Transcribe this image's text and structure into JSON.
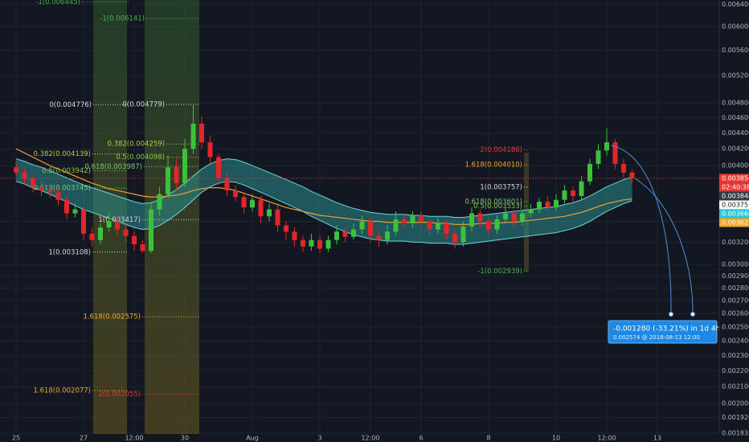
{
  "chart_data": {
    "type": "candlestick",
    "log": true,
    "grid": true,
    "ylim": [
      0.00183,
      0.00648
    ],
    "yticks": [
      {
        "value": 0.0064,
        "label": "0.006400"
      },
      {
        "value": 0.006,
        "label": "0.006000"
      },
      {
        "value": 0.0056,
        "label": "0.005600"
      },
      {
        "value": 0.0052,
        "label": "0.005200"
      },
      {
        "value": 0.0048,
        "label": "0.004800"
      },
      {
        "value": 0.0046,
        "label": "0.004600"
      },
      {
        "value": 0.0044,
        "label": "0.004400"
      },
      {
        "value": 0.0042,
        "label": "0.004200"
      },
      {
        "value": 0.004,
        "label": "0.004000"
      },
      {
        "value": 0.0034,
        "label": "0.003400"
      },
      {
        "value": 0.0032,
        "label": "0.003200"
      },
      {
        "value": 0.003,
        "label": "0.003000"
      },
      {
        "value": 0.0029,
        "label": "0.002900"
      },
      {
        "value": 0.0028,
        "label": "0.002800"
      },
      {
        "value": 0.0027,
        "label": "0.002700"
      },
      {
        "value": 0.0026,
        "label": "0.002600"
      },
      {
        "value": 0.0025,
        "label": "0.002500"
      },
      {
        "value": 0.0024,
        "label": "0.002400"
      },
      {
        "value": 0.0023,
        "label": "0.002300"
      },
      {
        "value": 0.0022,
        "label": "0.002200"
      },
      {
        "value": 0.0021,
        "label": "0.002100"
      },
      {
        "value": 0.002,
        "label": "0.002000"
      },
      {
        "value": 0.00192,
        "label": "0.001920"
      },
      {
        "value": 0.001835,
        "label": "0.001835"
      }
    ],
    "categories": [
      "25",
      null,
      null,
      null,
      null,
      null,
      null,
      null,
      "27",
      null,
      null,
      null,
      null,
      null,
      "12:00",
      null,
      null,
      null,
      null,
      null,
      "30",
      null,
      null,
      null,
      null,
      null,
      null,
      null,
      "Aug",
      null,
      null,
      null,
      null,
      null,
      null,
      null,
      "3",
      null,
      null,
      null,
      null,
      null,
      "12:00",
      null,
      null,
      null,
      null,
      null,
      "6",
      null,
      null,
      null,
      null,
      null,
      null,
      null,
      "8",
      null,
      null,
      null,
      null,
      null,
      null,
      null,
      "10",
      null,
      null,
      null,
      null,
      null,
      "12:00",
      null,
      null,
      null,
      null,
      null,
      "13",
      null
    ],
    "up_color": "#3cc13c",
    "down_color": "#e3262a",
    "open": [
      0.00398,
      0.00392,
      0.00385,
      0.00376,
      0.00372,
      0.0037,
      0.00362,
      0.00348,
      0.00352,
      0.00328,
      0.00322,
      0.00334,
      0.0034,
      0.00332,
      0.00326,
      0.00318,
      0.00312,
      0.00352,
      0.00368,
      0.00398,
      0.0038,
      0.0042,
      0.00452,
      0.00428,
      0.0041,
      0.00386,
      0.00372,
      0.00365,
      0.00354,
      0.00362,
      0.00345,
      0.00352,
      0.00336,
      0.0033,
      0.00322,
      0.00316,
      0.00322,
      0.00314,
      0.00322,
      0.0033,
      0.00325,
      0.00332,
      0.0034,
      0.00326,
      0.00322,
      0.0033,
      0.00342,
      0.00338,
      0.00346,
      0.0034,
      0.00332,
      0.00338,
      0.00328,
      0.0032,
      0.00335,
      0.00348,
      0.0034,
      0.00332,
      0.00342,
      0.00348,
      0.0034,
      0.00348,
      0.00352,
      0.0036,
      0.00354,
      0.00362,
      0.00372,
      0.00366,
      0.00382,
      0.00402,
      0.00418,
      0.00428,
      0.00402,
      0.00392,
      null,
      null,
      null,
      null
    ],
    "high": [
      0.00405,
      0.00398,
      0.0039,
      0.00382,
      0.00378,
      0.00376,
      0.00366,
      0.00358,
      0.00355,
      0.00334,
      0.00338,
      0.00348,
      0.00346,
      0.00338,
      0.0033,
      0.00322,
      0.00358,
      0.00376,
      0.00412,
      0.00408,
      0.00432,
      0.00478,
      0.00462,
      0.00436,
      0.00414,
      0.00392,
      0.00378,
      0.0037,
      0.00368,
      0.00366,
      0.00358,
      0.00356,
      0.0034,
      0.00334,
      0.00326,
      0.00328,
      0.00326,
      0.00326,
      0.00336,
      0.00334,
      0.00338,
      0.00346,
      0.00344,
      0.0033,
      0.00336,
      0.0035,
      0.00348,
      0.0035,
      0.0035,
      0.00344,
      0.00344,
      0.00342,
      0.00332,
      0.0034,
      0.00354,
      0.00352,
      0.00344,
      0.00346,
      0.00354,
      0.00352,
      0.00352,
      0.00358,
      0.00364,
      0.00366,
      0.00368,
      0.00378,
      0.00376,
      0.00388,
      0.00408,
      0.00426,
      0.00446,
      0.00432,
      0.00408,
      0.00396,
      null,
      null,
      null,
      null
    ],
    "low": [
      0.00388,
      0.00378,
      0.0037,
      0.00366,
      0.00364,
      0.00356,
      0.00342,
      0.00344,
      0.00322,
      0.00316,
      0.00318,
      0.0033,
      0.00326,
      0.0032,
      0.00312,
      0.0031,
      0.0031,
      0.00346,
      0.00364,
      0.00372,
      0.00376,
      0.00414,
      0.0042,
      0.00402,
      0.00378,
      0.00366,
      0.0036,
      0.00348,
      0.0035,
      0.00338,
      0.0034,
      0.0033,
      0.00322,
      0.00316,
      0.00311,
      0.00312,
      0.0031,
      0.00311,
      0.00318,
      0.0032,
      0.00322,
      0.00328,
      0.0032,
      0.00316,
      0.00318,
      0.00326,
      0.00334,
      0.00334,
      0.00336,
      0.00326,
      0.00328,
      0.00322,
      0.00314,
      0.00316,
      0.0033,
      0.00334,
      0.00326,
      0.00328,
      0.00338,
      0.00334,
      0.00336,
      0.00344,
      0.00348,
      0.0035,
      0.0035,
      0.00358,
      0.0036,
      0.00362,
      0.00378,
      0.00396,
      0.00412,
      0.00396,
      0.00386,
      0.0038,
      null,
      null,
      null,
      null
    ],
    "close": [
      0.00392,
      0.00385,
      0.00376,
      0.00372,
      0.0037,
      0.00362,
      0.00348,
      0.00352,
      0.00328,
      0.00322,
      0.00334,
      0.0034,
      0.00332,
      0.00326,
      0.00318,
      0.00312,
      0.00352,
      0.00368,
      0.00398,
      0.0038,
      0.0042,
      0.00452,
      0.00428,
      0.0041,
      0.00386,
      0.00372,
      0.00365,
      0.00354,
      0.00362,
      0.00345,
      0.00352,
      0.00336,
      0.0033,
      0.00322,
      0.00316,
      0.00322,
      0.00314,
      0.00322,
      0.0033,
      0.00325,
      0.00332,
      0.0034,
      0.00326,
      0.00322,
      0.0033,
      0.00342,
      0.00338,
      0.00346,
      0.0034,
      0.00332,
      0.00338,
      0.00328,
      0.0032,
      0.00335,
      0.00348,
      0.0034,
      0.00332,
      0.00342,
      0.00348,
      0.0034,
      0.00348,
      0.00352,
      0.0036,
      0.00354,
      0.00362,
      0.00372,
      0.00366,
      0.00382,
      0.00402,
      0.00418,
      0.00428,
      0.00402,
      0.00392,
      0.003854,
      null,
      null,
      null,
      null
    ],
    "ma": {
      "color": "#f0a030",
      "values": [
        0.0042,
        0.00415,
        0.0041,
        0.00405,
        0.004,
        0.00396,
        0.00392,
        0.00388,
        0.00384,
        0.0038,
        0.00377,
        0.00374,
        0.00372,
        0.0037,
        0.00368,
        0.00366,
        0.00365,
        0.00365,
        0.00366,
        0.00367,
        0.00369,
        0.00372,
        0.00374,
        0.00375,
        0.00375,
        0.00374,
        0.00372,
        0.00369,
        0.00366,
        0.00363,
        0.0036,
        0.00357,
        0.00354,
        0.00352,
        0.0035,
        0.00348,
        0.00346,
        0.00345,
        0.00344,
        0.00343,
        0.00342,
        0.00341,
        0.0034,
        0.0034,
        0.00339,
        0.00339,
        0.00339,
        0.00339,
        0.00339,
        0.00339,
        0.00338,
        0.00338,
        0.00337,
        0.00337,
        0.00337,
        0.00338,
        0.00338,
        0.00338,
        0.00339,
        0.00339,
        0.0034,
        0.00341,
        0.00342,
        0.00343,
        0.00344,
        0.00345,
        0.00347,
        0.00349,
        0.00352,
        0.00355,
        0.00358,
        0.0036,
        0.00362,
        0.00363,
        null,
        null,
        null,
        null
      ]
    },
    "band": {
      "color": "#2a8c8c",
      "edge": "#6fd6d6",
      "upper": [
        0.00408,
        0.00405,
        0.00401,
        0.00398,
        0.00394,
        0.0039,
        0.00386,
        0.00382,
        0.00378,
        0.00375,
        0.00372,
        0.00369,
        0.00366,
        0.00363,
        0.0036,
        0.00358,
        0.00359,
        0.00362,
        0.00367,
        0.00373,
        0.0038,
        0.00388,
        0.00396,
        0.00402,
        0.00406,
        0.00408,
        0.00407,
        0.00404,
        0.004,
        0.00396,
        0.00392,
        0.00388,
        0.00384,
        0.0038,
        0.00376,
        0.00371,
        0.00367,
        0.00363,
        0.00359,
        0.00356,
        0.00353,
        0.00351,
        0.00349,
        0.00348,
        0.00347,
        0.00347,
        0.00347,
        0.00346,
        0.00346,
        0.00345,
        0.00345,
        0.00345,
        0.00344,
        0.00344,
        0.00345,
        0.00346,
        0.00347,
        0.00348,
        0.00349,
        0.0035,
        0.00351,
        0.00352,
        0.00353,
        0.00354,
        0.00355,
        0.00357,
        0.00359,
        0.00362,
        0.00366,
        0.00371,
        0.00376,
        0.0038,
        0.00384,
        0.00387,
        null,
        null,
        null,
        null
      ],
      "lower": [
        0.00382,
        0.00379,
        0.00375,
        0.00372,
        0.00368,
        0.00364,
        0.0036,
        0.00356,
        0.00352,
        0.00349,
        0.00346,
        0.00343,
        0.0034,
        0.00337,
        0.00334,
        0.00332,
        0.00333,
        0.00336,
        0.00341,
        0.00347,
        0.00354,
        0.00362,
        0.0037,
        0.00376,
        0.0038,
        0.00382,
        0.00381,
        0.00378,
        0.00374,
        0.0037,
        0.00366,
        0.00362,
        0.00358,
        0.00354,
        0.0035,
        0.00345,
        0.00341,
        0.00337,
        0.00333,
        0.0033,
        0.00327,
        0.00325,
        0.00323,
        0.00322,
        0.00321,
        0.00321,
        0.00321,
        0.0032,
        0.0032,
        0.00319,
        0.00319,
        0.00319,
        0.00318,
        0.00318,
        0.00319,
        0.0032,
        0.00321,
        0.00322,
        0.00323,
        0.00324,
        0.00325,
        0.00326,
        0.00327,
        0.00328,
        0.00329,
        0.00331,
        0.00333,
        0.00336,
        0.0034,
        0.00345,
        0.0035,
        0.00354,
        0.00358,
        0.00361,
        null,
        null,
        null,
        null
      ]
    },
    "annotations": [
      {
        "text": "-1(0.006445)",
        "value": 0.006445,
        "color": "#4caf50"
      },
      {
        "text": "-1(0.006141)",
        "value": 0.006141,
        "color": "#4caf50"
      },
      {
        "text": "0(0.004776)",
        "value": 0.004776,
        "color": "#d8d8d8"
      },
      {
        "text": "0(0.004779)",
        "value": 0.004779,
        "color": "#d8d8d8"
      },
      {
        "text": "0.382(0.004259)",
        "value": 0.004259,
        "color": "#b5c94a"
      },
      {
        "text": "0.382(0.004139)",
        "value": 0.004139,
        "color": "#b5c94a"
      },
      {
        "text": "0.5(0.004098)",
        "value": 0.004098,
        "color": "#8bc34a"
      },
      {
        "text": "0.5(0.003942)",
        "value": 0.003942,
        "color": "#8bc34a"
      },
      {
        "text": "0.618(0.003987)",
        "value": 0.003987,
        "color": "#7cc576"
      },
      {
        "text": "0.618(0.003745)",
        "value": 0.003745,
        "color": "#7cc576"
      },
      {
        "text": "1(0.003417)",
        "value": 0.003417,
        "color": "#d8d8d8"
      },
      {
        "text": "1(0.003108)",
        "value": 0.003108,
        "color": "#d8d8d8"
      },
      {
        "text": "1.618(0.002575)",
        "value": 0.002575,
        "color": "#f5a623"
      },
      {
        "text": "1.618(0.002077)",
        "value": 0.002077,
        "color": "#f5a623"
      },
      {
        "text": "2(0.002055)",
        "value": 0.002055,
        "color": "#e53935"
      },
      {
        "text": "2(0.004186)",
        "value": 0.004186,
        "color": "#e53935"
      },
      {
        "text": "1.618(0.004010)",
        "value": 0.00401,
        "color": "#f5a623"
      },
      {
        "text": "1(0.003757)",
        "value": 0.003757,
        "color": "#d8d8d8"
      },
      {
        "text": "0.618(0.003601)",
        "value": 0.003601,
        "color": "#7cc576"
      },
      {
        "text": "0.5(0.003553)",
        "value": 0.003553,
        "color": "#8bc34a"
      },
      {
        "text": "-1(0.002939)",
        "value": 0.002939,
        "color": "#4caf50"
      }
    ],
    "price_tags": [
      {
        "value": 0.003854,
        "color": "#e53935"
      },
      {
        "value": 0.003848,
        "color": "#363a45"
      },
      {
        "value": 0.003757,
        "color": "#ffffff"
      },
      {
        "value": 0.003666,
        "color": "#26c6da"
      },
      {
        "value": 0.003622,
        "color": "#f5a623"
      }
    ],
    "countdown": "02:40:38",
    "projection": {
      "text": "-0.001280 (-33.21%) in 1d 4h",
      "detail": "0.002574 @ 2018-08-13 12:00"
    }
  }
}
